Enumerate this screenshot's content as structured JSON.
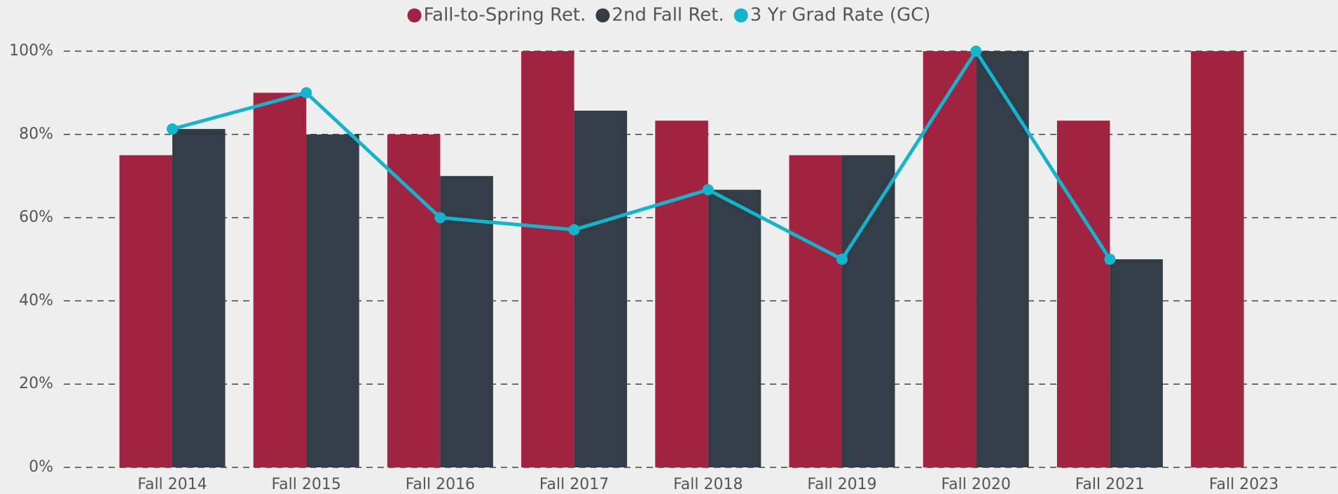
{
  "chart_data": {
    "type": "bar-line",
    "categories": [
      "Fall 2014",
      "Fall 2015",
      "Fall 2016",
      "Fall 2017",
      "Fall 2018",
      "Fall 2019",
      "Fall 2020",
      "Fall 2021",
      "Fall 2023"
    ],
    "series": [
      {
        "name": "Fall-to-Spring Ret.",
        "type": "bar",
        "color": "#a0243f",
        "values": [
          75,
          90,
          80,
          100,
          83.3,
          75,
          100,
          83.3,
          100
        ]
      },
      {
        "name": "2nd Fall Ret.",
        "type": "bar",
        "color": "#323d47",
        "values": [
          81.3,
          80,
          70,
          85.7,
          66.7,
          75,
          100,
          50,
          null
        ]
      },
      {
        "name": "3 Yr Grad Rate (GC)",
        "type": "line",
        "color": "#12b5cb",
        "values": [
          81.3,
          90,
          60,
          57.1,
          66.7,
          50,
          100,
          50,
          null
        ]
      }
    ],
    "ylim": [
      0,
      100
    ],
    "yticks": [
      {
        "value": 0,
        "label": "0%"
      },
      {
        "value": 20,
        "label": "20%"
      },
      {
        "value": 40,
        "label": "40%"
      },
      {
        "value": 60,
        "label": "60%"
      },
      {
        "value": 80,
        "label": "80%"
      },
      {
        "value": 100,
        "label": "100%"
      }
    ],
    "grid": true,
    "legend": "top"
  }
}
